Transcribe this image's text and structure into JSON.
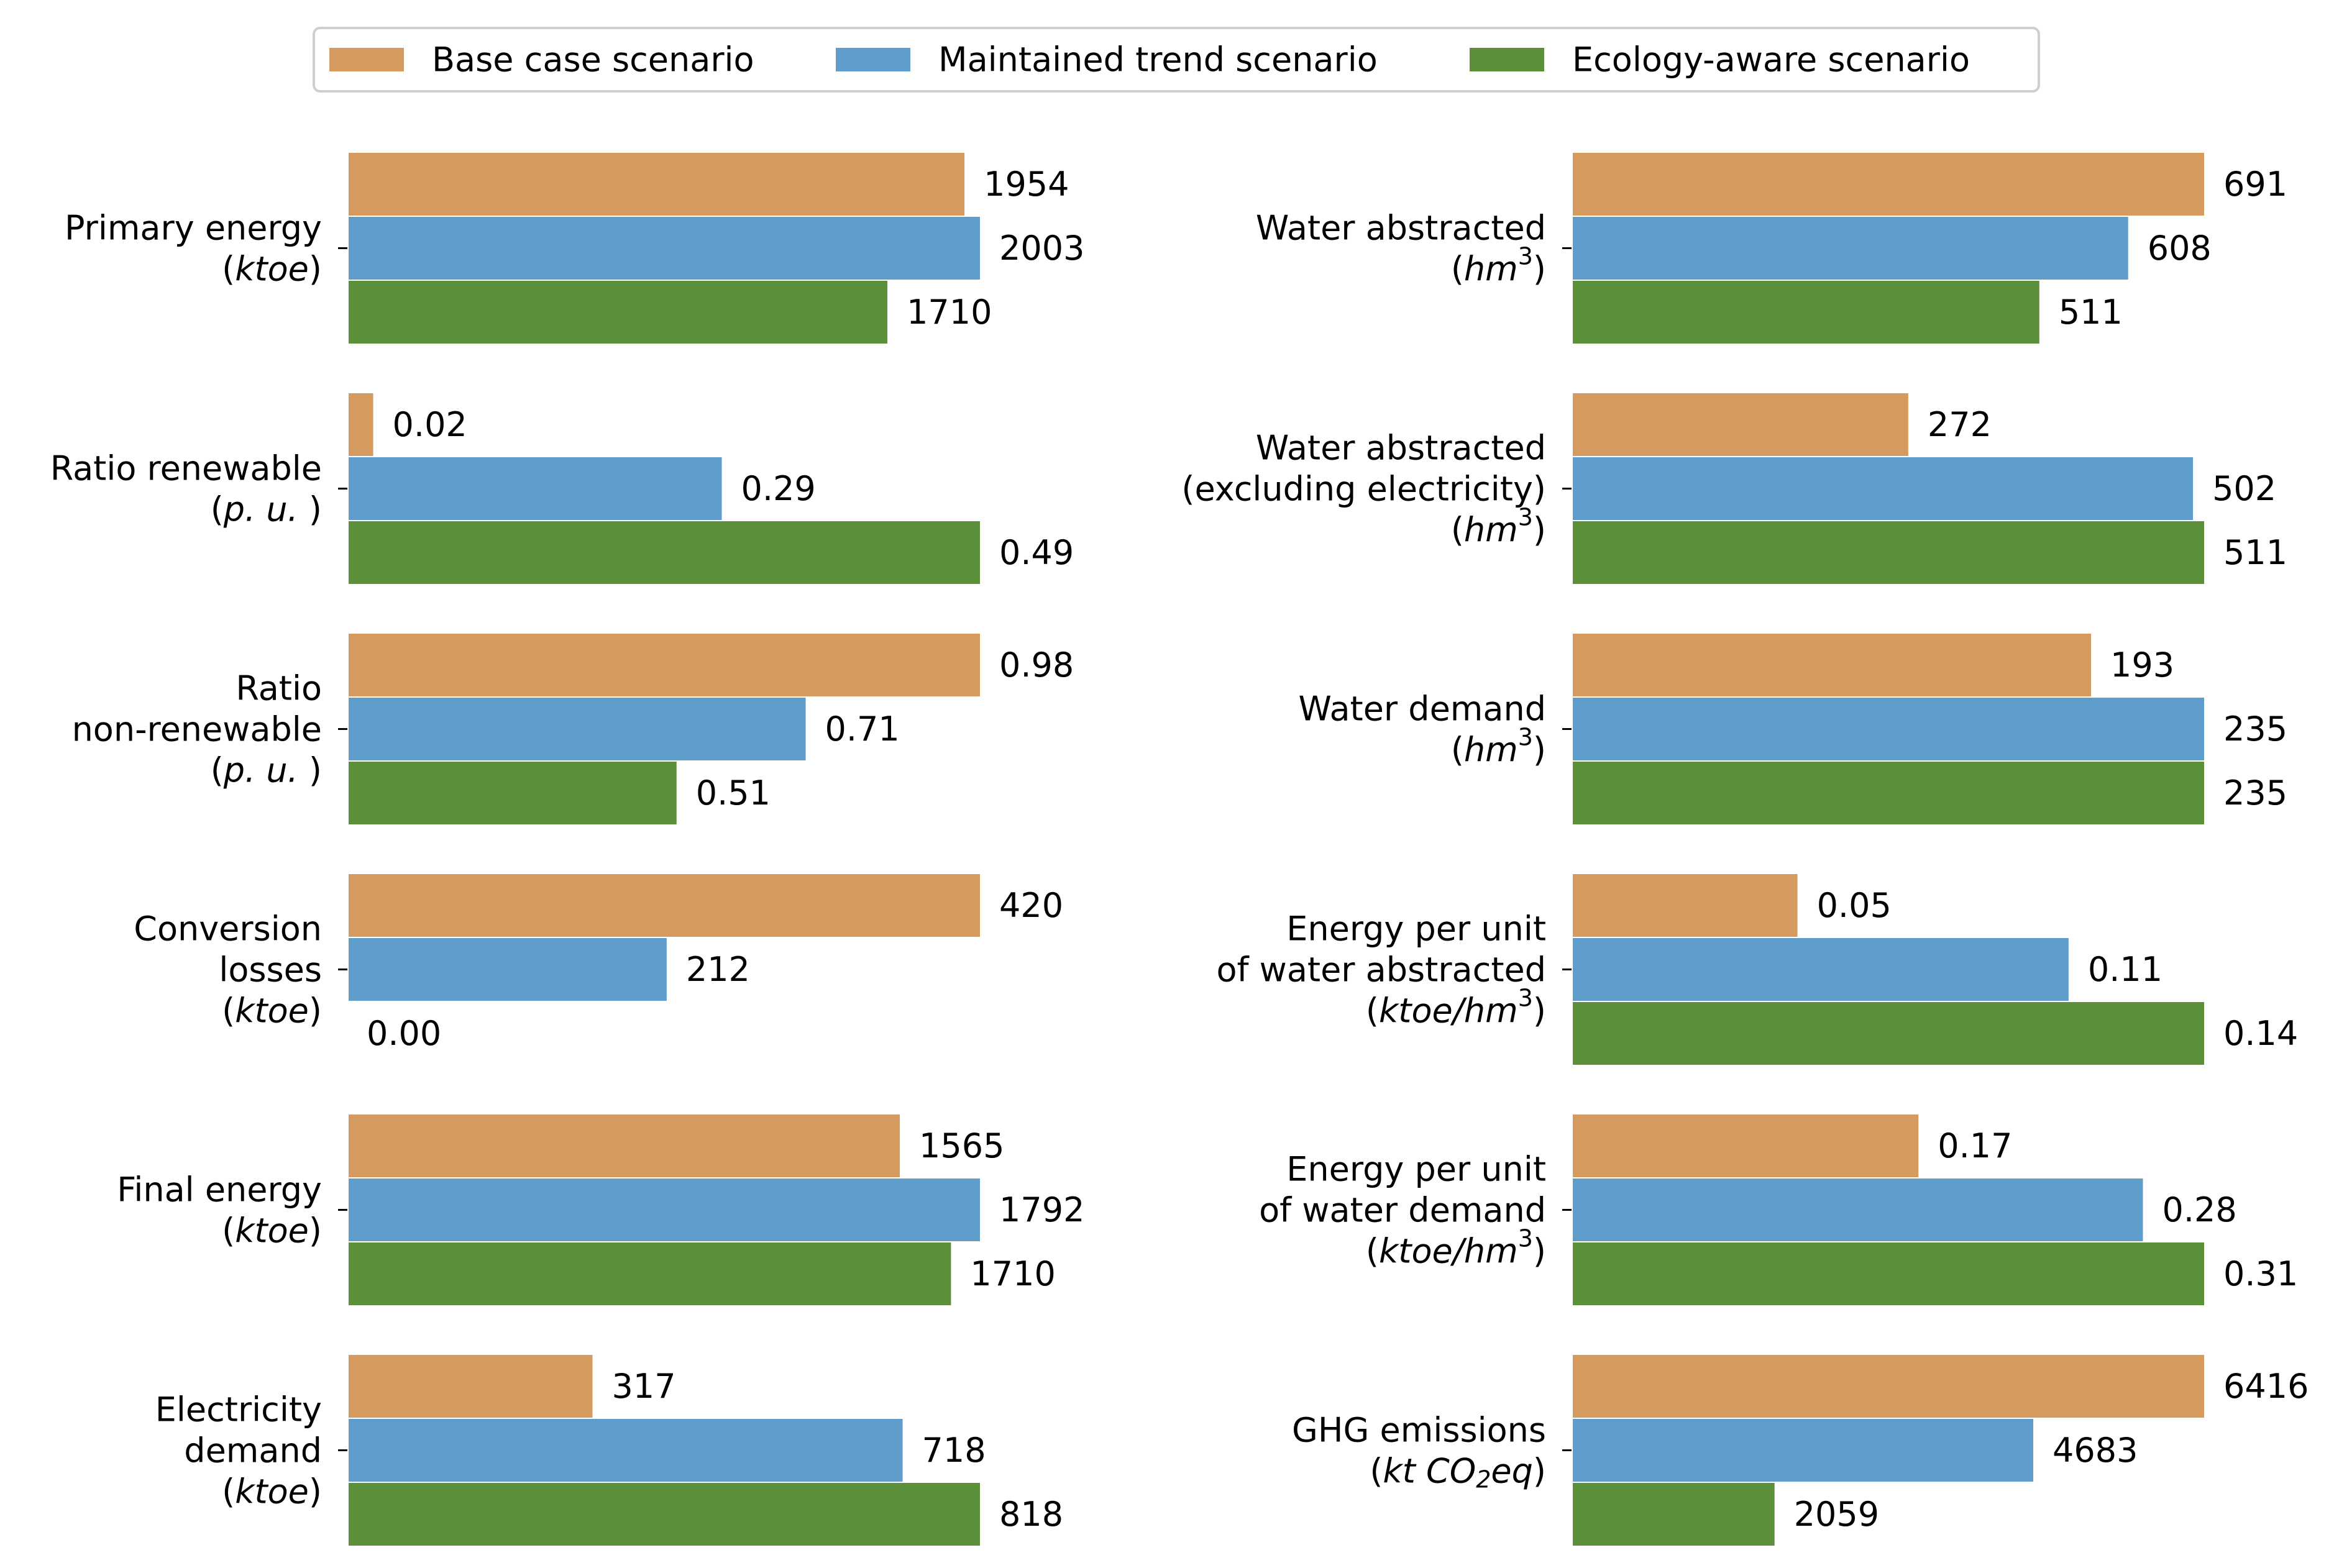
{
  "chart_data": {
    "type": "bar",
    "orientation": "horizontal",
    "grid": false,
    "legend_position": "top-center",
    "series": [
      {
        "name": "Base case scenario",
        "color": "#D59A5E"
      },
      {
        "name": "Maintained trend scenario",
        "color": "#5E9CC9"
      },
      {
        "name": "Ecology-aware scenario",
        "color": "#5C8F3A"
      }
    ],
    "panels": [
      {
        "column": "left",
        "label_lines": [
          "Primary energy"
        ],
        "unit": "ktoe",
        "values": [
          1954,
          2003,
          1710
        ],
        "value_labels": [
          "1954",
          "2003",
          "1710"
        ]
      },
      {
        "column": "left",
        "label_lines": [
          "Ratio renewable"
        ],
        "unit": "p.u.",
        "values": [
          0.02,
          0.29,
          0.49
        ],
        "value_labels": [
          "0.02",
          "0.29",
          "0.49"
        ]
      },
      {
        "column": "left",
        "label_lines": [
          "Ratio",
          "non-renewable"
        ],
        "unit": "p.u.",
        "values": [
          0.98,
          0.71,
          0.51
        ],
        "value_labels": [
          "0.98",
          "0.71",
          "0.51"
        ]
      },
      {
        "column": "left",
        "label_lines": [
          "Conversion",
          "losses"
        ],
        "unit": "ktoe",
        "values": [
          420,
          212,
          0.0
        ],
        "value_labels": [
          "420",
          "212",
          "0.00"
        ]
      },
      {
        "column": "left",
        "label_lines": [
          "Final energy"
        ],
        "unit": "ktoe",
        "values": [
          1565,
          1792,
          1710
        ],
        "value_labels": [
          "1565",
          "1792",
          "1710"
        ]
      },
      {
        "column": "left",
        "label_lines": [
          "Electricity",
          "demand"
        ],
        "unit": "ktoe",
        "values": [
          317,
          718,
          818
        ],
        "value_labels": [
          "317",
          "718",
          "818"
        ]
      },
      {
        "column": "right",
        "label_lines": [
          "Water abstracted"
        ],
        "unit": "hm3",
        "values": [
          691,
          608,
          511
        ],
        "value_labels": [
          "691",
          "608",
          "511"
        ]
      },
      {
        "column": "right",
        "label_lines": [
          "Water abstracted",
          "(excluding electricity)"
        ],
        "unit": "hm3",
        "values": [
          272,
          502,
          511
        ],
        "value_labels": [
          "272",
          "502",
          "511"
        ]
      },
      {
        "column": "right",
        "label_lines": [
          "Water demand"
        ],
        "unit": "hm3",
        "values": [
          193,
          235,
          235
        ],
        "value_labels": [
          "193",
          "235",
          "235"
        ]
      },
      {
        "column": "right",
        "label_lines": [
          "Energy per unit",
          "of water abstracted"
        ],
        "unit": "ktoe/hm3",
        "values": [
          0.05,
          0.11,
          0.14
        ],
        "value_labels": [
          "0.05",
          "0.11",
          "0.14"
        ]
      },
      {
        "column": "right",
        "label_lines": [
          "Energy per unit",
          "of water demand"
        ],
        "unit": "ktoe/hm3",
        "values": [
          0.17,
          0.28,
          0.31
        ],
        "value_labels": [
          "0.17",
          "0.28",
          "0.31"
        ]
      },
      {
        "column": "right",
        "label_lines": [
          "GHG emissions"
        ],
        "unit": "kt CO2eq",
        "values": [
          6416,
          4683,
          2059
        ],
        "value_labels": [
          "6416",
          "4683",
          "2059"
        ]
      }
    ]
  }
}
